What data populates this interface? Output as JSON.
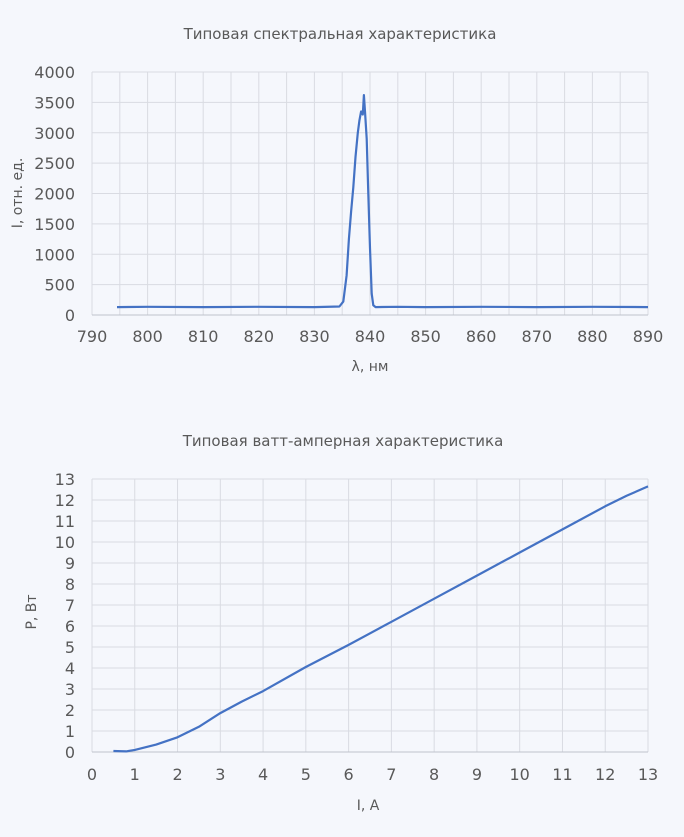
{
  "chart_data": [
    {
      "type": "line",
      "title": "Типовая спектральная характеристика",
      "xlabel": "λ, нм",
      "ylabel": "I, отн. ед.",
      "xlim": [
        790,
        890
      ],
      "ylim": [
        0,
        4000
      ],
      "xticks": [
        790,
        800,
        810,
        820,
        830,
        840,
        850,
        860,
        870,
        880,
        890
      ],
      "yticks": [
        0,
        500,
        1000,
        1500,
        2000,
        2500,
        3000,
        3500,
        4000
      ],
      "x_grid_step": 5,
      "grid": true,
      "line_color": "#4472c4",
      "series": [
        {
          "x": [
            794.5,
            800,
            810,
            820,
            830,
            834.5,
            835.2,
            835.8,
            836.2,
            836.6,
            837,
            837.4,
            837.8,
            838.1,
            838.4,
            838.7,
            838.9,
            839.1,
            839.4,
            839.7,
            840,
            840.3,
            840.6,
            841,
            845,
            850,
            860,
            870,
            880,
            890
          ],
          "y": [
            130,
            135,
            130,
            135,
            130,
            140,
            220,
            650,
            1250,
            1700,
            2100,
            2600,
            3000,
            3200,
            3350,
            3300,
            3620,
            3350,
            2900,
            2000,
            1100,
            350,
            160,
            130,
            135,
            130,
            135,
            130,
            135,
            130
          ]
        }
      ]
    },
    {
      "type": "line",
      "title": "Типовая ватт-амперная характеристика",
      "xlabel": "I, А",
      "ylabel": "P, Вт",
      "xlim": [
        0,
        13
      ],
      "ylim": [
        0,
        13
      ],
      "xticks": [
        0,
        1,
        2,
        3,
        4,
        5,
        6,
        7,
        8,
        9,
        10,
        11,
        12,
        13
      ],
      "yticks": [
        0,
        1,
        2,
        3,
        4,
        5,
        6,
        7,
        8,
        9,
        10,
        11,
        12,
        13
      ],
      "grid": true,
      "line_color": "#4472c4",
      "series": [
        {
          "x": [
            0.5,
            0.8,
            1,
            1.5,
            2,
            2.5,
            3,
            3.5,
            4,
            5,
            6,
            7,
            8,
            9,
            10,
            11,
            12,
            12.5,
            13
          ],
          "y": [
            0.05,
            0.03,
            0.1,
            0.35,
            0.7,
            1.2,
            1.85,
            2.4,
            2.9,
            4.05,
            5.1,
            6.2,
            7.3,
            8.4,
            9.5,
            10.6,
            11.7,
            12.2,
            12.65
          ]
        }
      ]
    }
  ]
}
